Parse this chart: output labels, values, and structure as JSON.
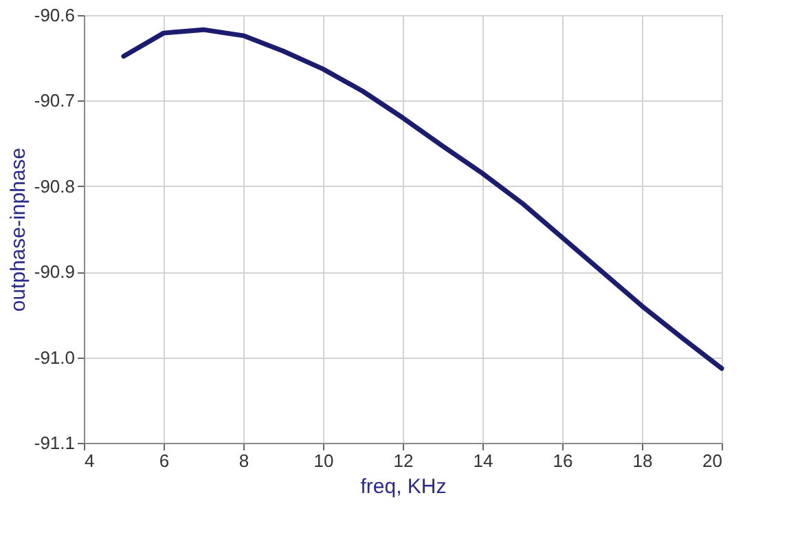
{
  "chart_data": {
    "type": "line",
    "xlabel": "freq, KHz",
    "ylabel": "outphase-inphase",
    "x": [
      5,
      6,
      7,
      8,
      9,
      10,
      11,
      12,
      13,
      14,
      15,
      16,
      17,
      18,
      19,
      20
    ],
    "series": [
      {
        "color": "#1c1c6e",
        "values": [
          -90.648,
          -90.621,
          -90.617,
          -90.624,
          -90.642,
          -90.663,
          -90.689,
          -90.72,
          -90.753,
          -90.785,
          -90.82,
          -90.86,
          -90.9,
          -90.94,
          -90.977,
          -91.013
        ]
      }
    ],
    "xlim": [
      4,
      20
    ],
    "xticks": [
      4,
      6,
      8,
      10,
      12,
      14,
      16,
      18,
      20
    ],
    "ylim": [
      -91.1,
      -90.6
    ],
    "yticks": [
      {
        "value": -91.1,
        "label": "-91.1"
      },
      {
        "value": -91.0,
        "label": "-91.0"
      },
      {
        "value": -90.9,
        "label": "-90.9"
      },
      {
        "value": -90.8,
        "label": "-90.8"
      },
      {
        "value": -90.7,
        "label": "-90.7"
      },
      {
        "value": -90.6,
        "label": "-90.6"
      }
    ],
    "grid": true,
    "marker": "none",
    "line_style": "solid"
  }
}
